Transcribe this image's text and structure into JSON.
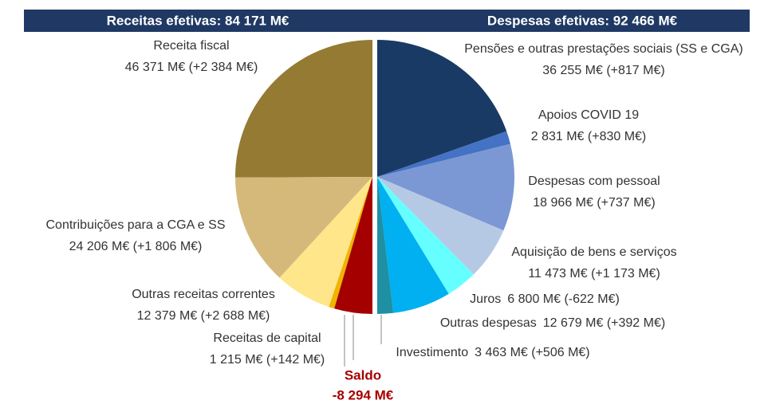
{
  "chart_data": {
    "type": "pie",
    "series": [
      {
        "name": "Receitas efetivas: 84 171 M€",
        "categories": [
          "Receita fiscal",
          "Contribuições para a CGA e SS",
          "Outras receitas correntes",
          "Receitas de capital",
          "Saldo"
        ],
        "values": [
          46371,
          24206,
          12379,
          1215,
          -8294
        ],
        "value_labels": [
          "46 371 M€ (+2 384 M€)",
          "24 206 M€ (+1 806 M€)",
          "12 379 M€ (+2 688 M€)",
          "1 215 M€ (+142 M€)",
          "-8 294 M€"
        ],
        "colors": [
          "#957a33",
          "#d5b97a",
          "#ffe68a",
          "#f0b400",
          "#a50000"
        ]
      },
      {
        "name": "Despesas efetivas: 92 466 M€",
        "categories": [
          "Pensões e outras prestações sociais (SS e CGA)",
          "Apoios COVID 19",
          "Despesas  com pessoal",
          "Aquisição de bens e serviços",
          "Juros",
          "Outras despesas",
          "Investimento"
        ],
        "values": [
          36255,
          2831,
          18966,
          11473,
          6800,
          12679,
          3463
        ],
        "value_labels": [
          "36 255 M€ (+817 M€)",
          "2 831 M€ (+830 M€)",
          "18 966 M€ (+737 M€)",
          "11 473 M€ (+1 173 M€)",
          "6 800 M€ (-622 M€)",
          "12 679 M€ (+392 M€)",
          "3 463 M€ (+506 M€)"
        ],
        "colors": [
          "#1a3a66",
          "#4472c4",
          "#7b98d4",
          "#b6c9e4",
          "#66ffff",
          "#00b0f0",
          "#1f8fa3"
        ]
      }
    ]
  }
}
